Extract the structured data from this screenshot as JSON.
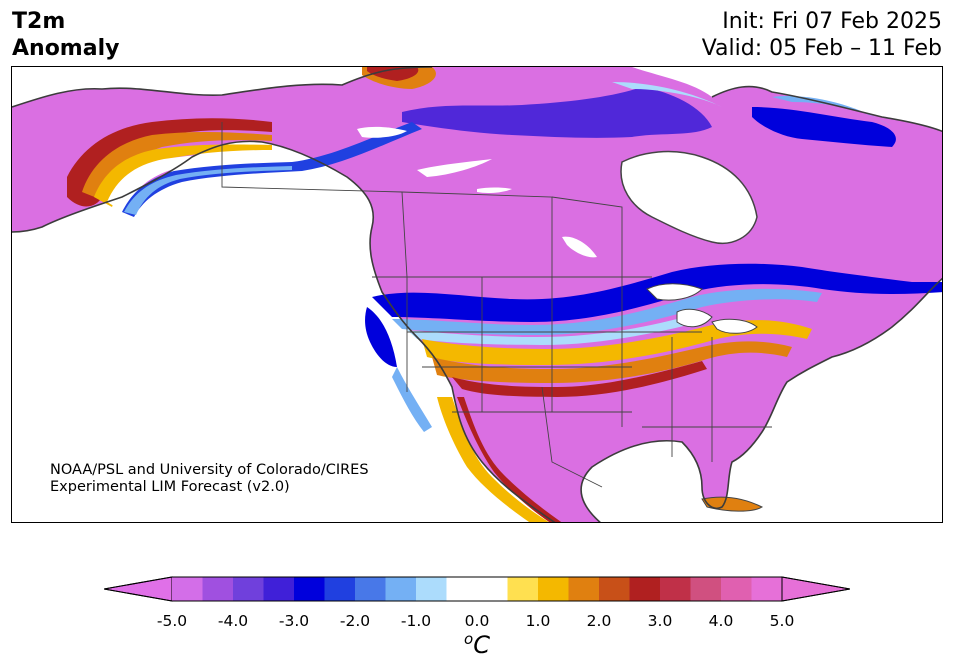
{
  "header": {
    "title_line1": "T2m",
    "title_line2": "Anomaly",
    "init": "Init: Fri 07 Feb 2025",
    "valid": "Valid: 05 Feb – 11 Feb"
  },
  "credit": {
    "line1": "NOAA/PSL and University of Colorado/CIRES",
    "line2": "Experimental LIM Forecast (v2.0)"
  },
  "colorbar": {
    "min": -5.0,
    "max": 5.0,
    "step": 0.5,
    "ticks": [
      "-5.0",
      "-4.0",
      "-3.0",
      "-2.0",
      "-1.0",
      "0.0",
      "1.0",
      "2.0",
      "3.0",
      "4.0",
      "5.0"
    ],
    "unit_base": "C",
    "unit_sup": "o",
    "extend": "both",
    "colors": [
      "#d36ee8",
      "#a050e0",
      "#7040dc",
      "#4020d8",
      "#0000dc",
      "#2040e0",
      "#4878e8",
      "#74b0f4",
      "#acdcfc",
      "#ffffff",
      "#ffffff",
      "#ffe050",
      "#f4b800",
      "#e08010",
      "#c85018",
      "#b02020",
      "#c03048",
      "#d05080",
      "#e060b0",
      "#e670d8"
    ],
    "under_color": "#e070e8",
    "over_color": "#e670d8"
  },
  "map": {
    "land_color": "#da6fe2",
    "ocean_color": "#ffffff",
    "border_color": "#444444",
    "regions": {
      "cold_strong": "#0000dc",
      "cold_mid": "#2040e0",
      "cold_light": "#74b0f4",
      "cold_faint": "#acdcfc",
      "cold_purple": "#5a2ee0",
      "warm_yellow": "#f4b800",
      "warm_orange": "#e08010",
      "warm_red": "#b02020",
      "warm_rose": "#c03048",
      "warm_pink": "#e060b0"
    }
  }
}
